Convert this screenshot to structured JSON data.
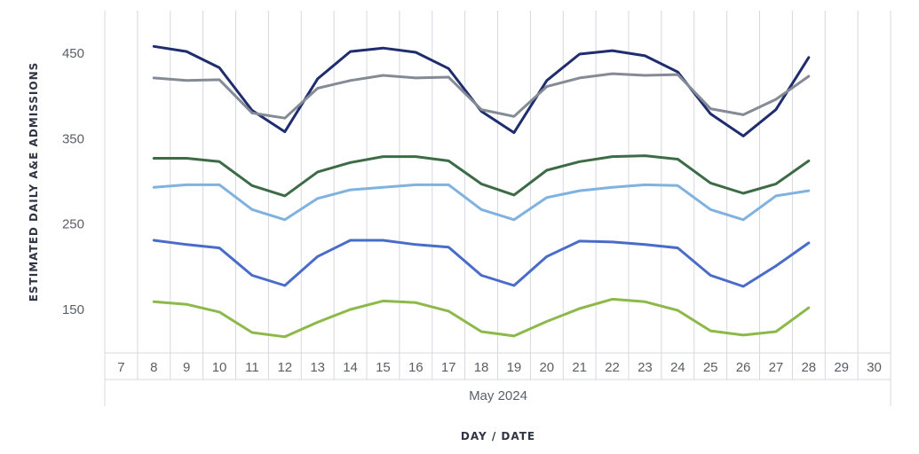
{
  "chart_data": {
    "type": "line",
    "title": "",
    "ylabel": "ESTIMATED DAILY A&E ADMISSIONS",
    "xlabel": "DAY / DATE",
    "month_label": "May 2024",
    "x": [
      "7",
      "8",
      "9",
      "10",
      "11",
      "12",
      "13",
      "14",
      "15",
      "16",
      "17",
      "18",
      "19",
      "20",
      "21",
      "22",
      "23",
      "24",
      "25",
      "26",
      "27",
      "28",
      "29",
      "30"
    ],
    "y_ticks": [
      150,
      250,
      350,
      450
    ],
    "ylim": [
      100,
      500
    ],
    "grid": "vertical",
    "legend": "none",
    "series": [
      {
        "color": "#1f2d6e",
        "values": [
          null,
          458,
          452,
          433,
          383,
          358,
          420,
          452,
          456,
          451,
          432,
          382,
          357,
          418,
          449,
          453,
          447,
          428,
          379,
          353,
          384,
          445,
          null,
          null
        ]
      },
      {
        "color": "#858b94",
        "values": [
          null,
          421,
          418,
          419,
          380,
          374,
          409,
          418,
          424,
          421,
          422,
          384,
          376,
          411,
          421,
          426,
          424,
          425,
          385,
          378,
          396,
          423,
          null,
          null
        ]
      },
      {
        "color": "#3e6b47",
        "values": [
          null,
          327,
          327,
          323,
          295,
          283,
          311,
          322,
          329,
          329,
          324,
          297,
          284,
          313,
          323,
          329,
          330,
          326,
          298,
          286,
          297,
          324,
          null,
          null
        ]
      },
      {
        "color": "#7fb2e0",
        "values": [
          null,
          293,
          296,
          296,
          267,
          255,
          280,
          290,
          293,
          296,
          296,
          267,
          255,
          281,
          289,
          293,
          296,
          295,
          267,
          255,
          283,
          289,
          null,
          null
        ]
      },
      {
        "color": "#4a6cc9",
        "values": [
          null,
          231,
          226,
          222,
          190,
          178,
          212,
          231,
          231,
          226,
          223,
          190,
          178,
          212,
          230,
          229,
          226,
          222,
          190,
          177,
          201,
          228,
          null,
          null
        ]
      },
      {
        "color": "#8db84a",
        "values": [
          null,
          159,
          156,
          147,
          123,
          118,
          135,
          150,
          160,
          158,
          148,
          124,
          119,
          136,
          151,
          162,
          159,
          149,
          125,
          120,
          124,
          152,
          null,
          null
        ]
      }
    ]
  }
}
